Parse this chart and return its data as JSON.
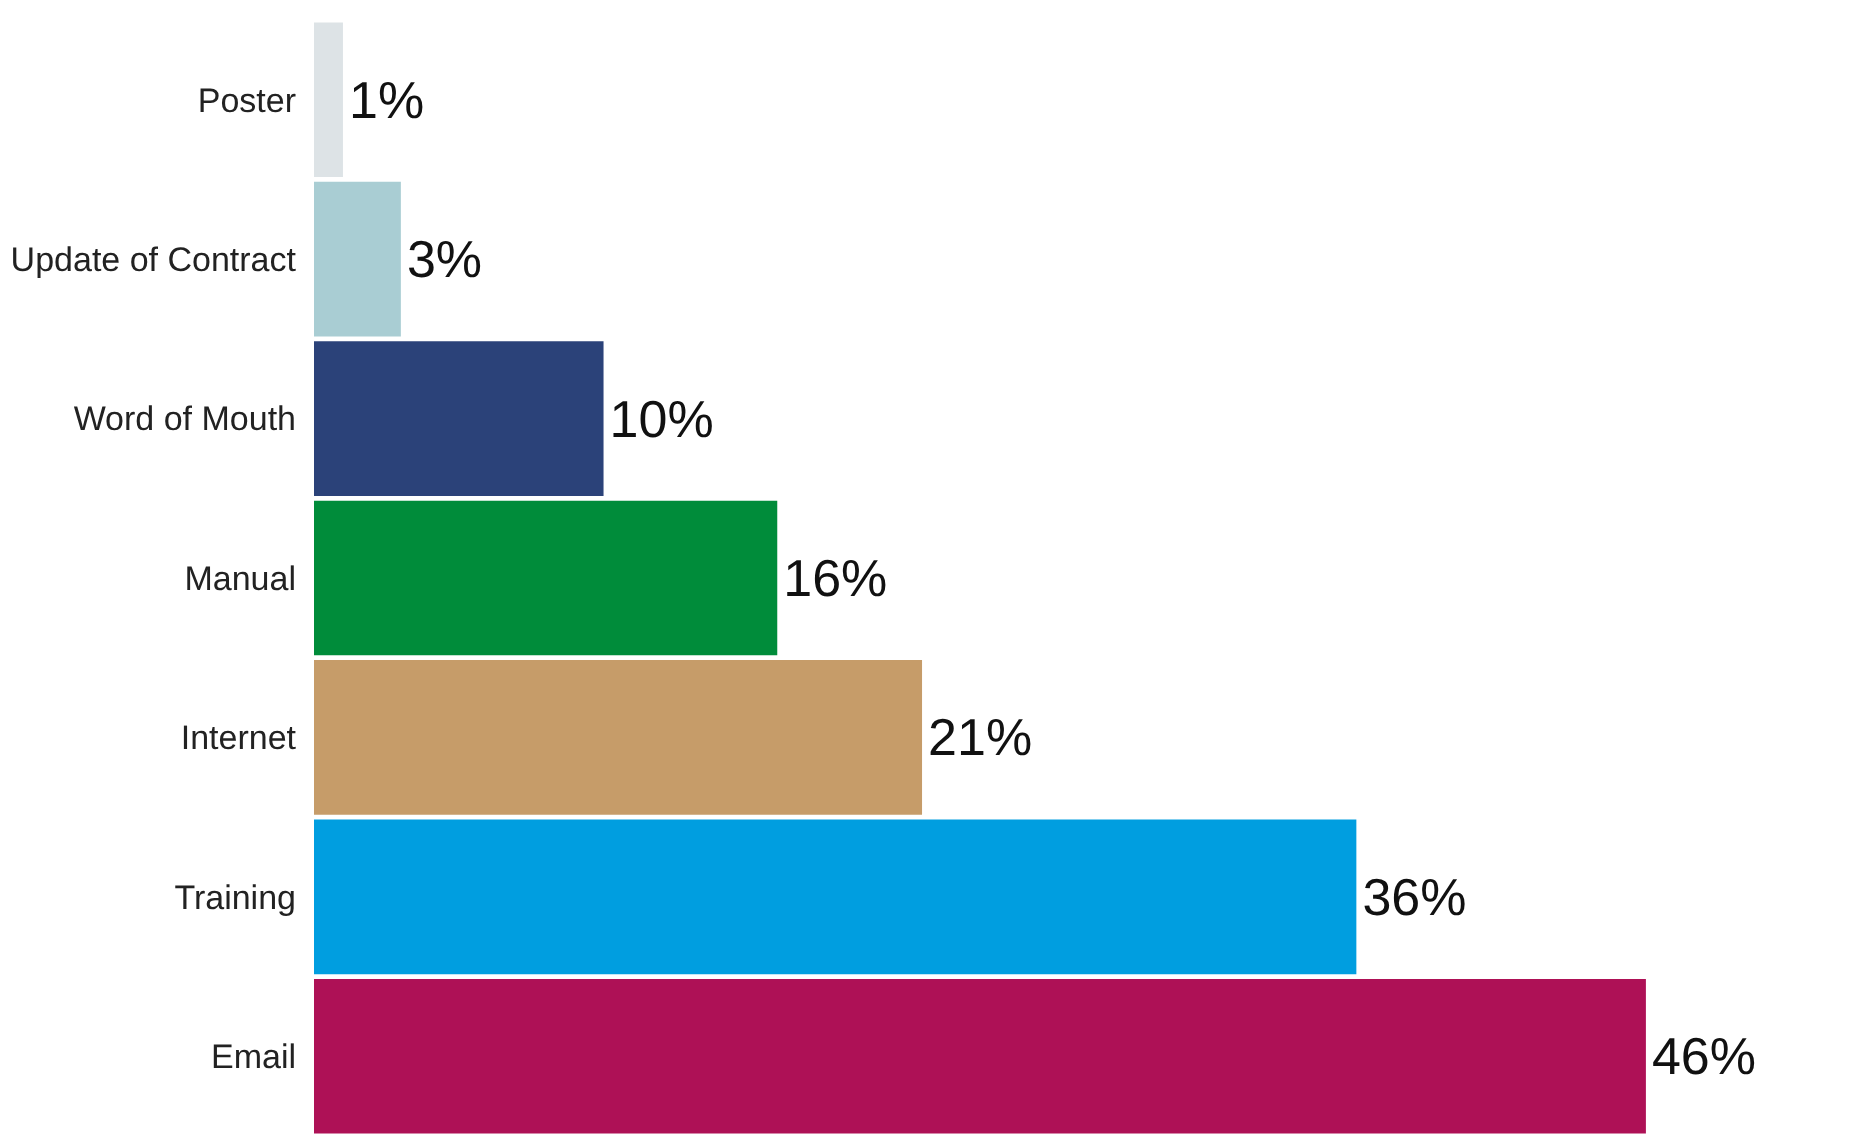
{
  "chart_data": {
    "type": "bar",
    "orientation": "horizontal",
    "categories": [
      "Poster",
      "Update of Contract",
      "Word of Mouth",
      "Manual",
      "Internet",
      "Training",
      "Email"
    ],
    "values": [
      1,
      3,
      10,
      16,
      21,
      36,
      46
    ],
    "colors": [
      "#dde3e6",
      "#a9cdd3",
      "#2b4279",
      "#008c3a",
      "#c69c69",
      "#009ee0",
      "#ae1156"
    ],
    "value_labels": [
      "1%",
      "3%",
      "10%",
      "16%",
      "21%",
      "36%",
      "46%"
    ],
    "tick_labels": "y"
  }
}
